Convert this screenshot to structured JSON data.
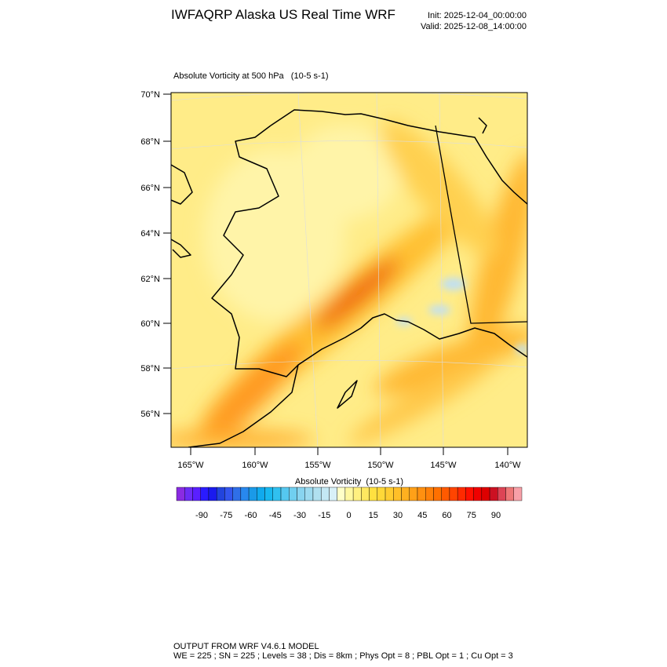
{
  "header": {
    "title": "IWFAQRP Alaska US Real Time WRF",
    "init": "Init: 2025-12-04_00:00:00",
    "valid": "Valid: 2025-12-08_14:00:00"
  },
  "map": {
    "title": "Absolute Vorticity at 500 hPa   (10-5 s-1)",
    "lat_labels": [
      "70°N",
      "68°N",
      "66°N",
      "64°N",
      "62°N",
      "60°N",
      "58°N",
      "56°N"
    ],
    "lon_labels": [
      "165°W",
      "160°W",
      "155°W",
      "150°W",
      "145°W",
      "140°W"
    ]
  },
  "colorbar": {
    "title": "Absolute Vorticity  (10-5 s-1)",
    "labels": [
      "-90",
      "-75",
      "-60",
      "-45",
      "-30",
      "-15",
      "0",
      "15",
      "30",
      "45",
      "60",
      "75",
      "90"
    ],
    "colors": [
      "#8a2be2",
      "#6c2cf5",
      "#5a1fff",
      "#2a1bff",
      "#1a1aee",
      "#2244dd",
      "#3355ee",
      "#2f6fe8",
      "#2888ee",
      "#1a9ae8",
      "#10aaee",
      "#18b8f0",
      "#30c0f0",
      "#55c8f0",
      "#70cff0",
      "#88d4f0",
      "#9cdaf0",
      "#b0e0f0",
      "#c4e8f4",
      "#d8f0f8",
      "#ffffc8",
      "#fff8a0",
      "#fff080",
      "#ffe860",
      "#ffe040",
      "#ffd838",
      "#ffcc30",
      "#ffbf28",
      "#ffb020",
      "#ffa018",
      "#ff9010",
      "#ff8008",
      "#ff7000",
      "#ff5a00",
      "#ff4400",
      "#ff2a00",
      "#ff1000",
      "#f00000",
      "#dd0000",
      "#cc1122",
      "#dd4455",
      "#ee7777",
      "#f8a0a8"
    ]
  },
  "footer": {
    "line1": "OUTPUT FROM WRF V4.6.1 MODEL",
    "line2": "WE = 225 ; SN = 225 ; Levels = 38 ; Dis = 8km ; Phys Opt = 8 ; PBL Opt = 1 ; Cu Opt = 3"
  }
}
